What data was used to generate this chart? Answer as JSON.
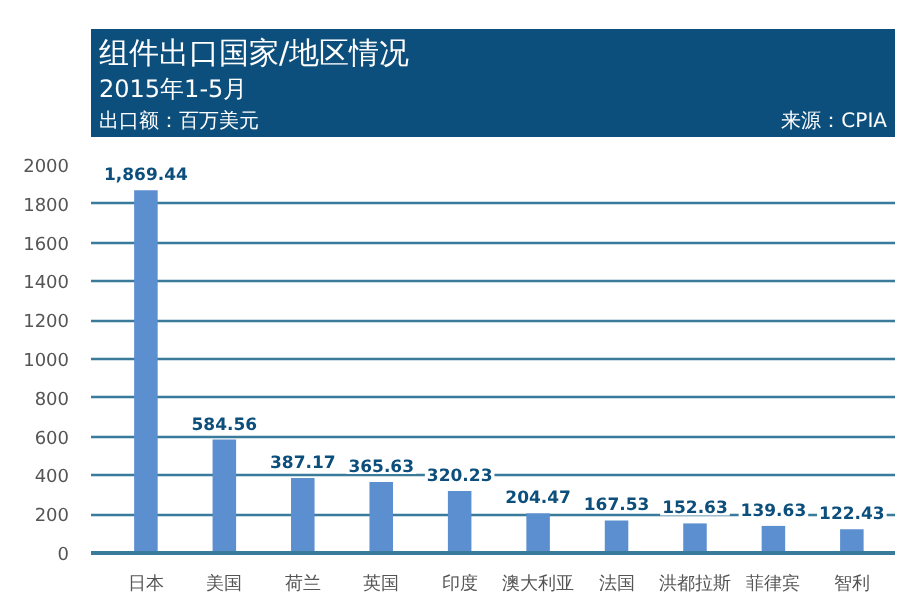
{
  "chart_data": {
    "type": "bar",
    "title": "组件出口国家/地区情况",
    "subtitle": "2015年1-5月",
    "ylabel": "出口额：百万美元",
    "annotations": [
      "来源：CPIA"
    ],
    "categories": [
      "日本",
      "美国",
      "荷兰",
      "英国",
      "印度",
      "澳大利亚",
      "法国",
      "洪都拉斯",
      "菲律宾",
      "智利"
    ],
    "values": [
      1869.44,
      584.56,
      387.17,
      365.63,
      320.23,
      204.47,
      167.53,
      152.63,
      139.63,
      122.43
    ],
    "value_labels": [
      "1,869.44",
      "584.56",
      "387.17",
      "365.63",
      "320.23",
      "204.47",
      "167.53",
      "152.63",
      "139.63",
      "122.43"
    ],
    "color": "#5b8fcf",
    "ylim": [
      0,
      2000
    ],
    "yticks": [
      0,
      200,
      400,
      600,
      800,
      1000,
      1200,
      1400,
      1600,
      1800,
      2000
    ],
    "grid": "y"
  }
}
